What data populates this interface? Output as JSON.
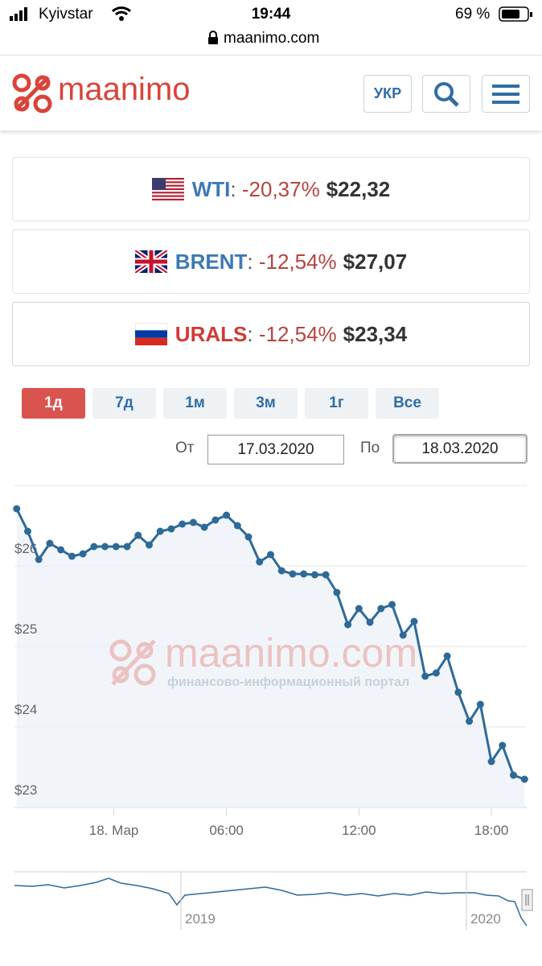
{
  "status": {
    "carrier": "Kyivstar",
    "time": "19:44",
    "battery": "69 %",
    "url": "maanimo.com"
  },
  "header": {
    "logo": "maanimo",
    "lang": "УКР"
  },
  "prices": [
    {
      "name": "WTI",
      "sep": ":",
      "change": "-20,37%",
      "price": "$22,32"
    },
    {
      "name": "BRENT",
      "sep": ":",
      "change": "-12,54%",
      "price": "$27,07"
    },
    {
      "name": "URALS",
      "sep": ":",
      "change": "-12,54%",
      "price": "$23,34"
    }
  ],
  "ranges": [
    "1д",
    "7д",
    "1м",
    "3м",
    "1г",
    "Все"
  ],
  "dates": {
    "from_label": "От",
    "from": "17.03.2020",
    "to_label": "По",
    "to": "18.03.2020"
  },
  "watermark": {
    "name": "maanimo.com",
    "tagline": "финансово-информационный портал"
  },
  "navigator": {
    "labels": [
      "2019",
      "2020"
    ]
  },
  "chart_data": {
    "type": "line",
    "color": "#2e6a97",
    "x": [
      -3.5,
      -3,
      -2.5,
      -2,
      -1.5,
      -1,
      -0.5,
      0,
      0.5,
      1,
      1.5,
      2,
      2.5,
      3,
      3.5,
      4,
      4.5,
      5,
      5.5,
      6,
      6.5,
      7,
      7.5,
      8,
      8.5,
      9,
      9.5,
      10,
      10.5,
      11,
      11.5,
      12,
      12.5,
      13,
      13.5,
      14,
      14.5,
      15,
      15.5,
      16,
      16.5,
      17,
      17.5,
      18,
      18.5,
      19,
      19.5
    ],
    "values": [
      26.71,
      26.43,
      26.08,
      26.28,
      26.2,
      26.12,
      26.15,
      26.24,
      26.24,
      26.24,
      26.24,
      26.38,
      26.26,
      26.43,
      26.46,
      26.52,
      26.54,
      26.48,
      26.57,
      26.63,
      26.5,
      26.36,
      26.05,
      26.14,
      25.94,
      25.9,
      25.9,
      25.89,
      25.89,
      25.67,
      25.27,
      25.47,
      25.3,
      25.47,
      25.52,
      25.14,
      25.31,
      24.63,
      24.67,
      24.88,
      24.43,
      24.07,
      24.28,
      23.57,
      23.77,
      23.4,
      23.35
    ],
    "xlim": [
      -3.6,
      19.6
    ],
    "xticks": [
      {
        "value": 0.9,
        "label": "18. Мар"
      },
      {
        "value": 6,
        "label": "06:00"
      },
      {
        "value": 12,
        "label": "12:00"
      },
      {
        "value": 18,
        "label": "18:00"
      }
    ],
    "ylim": [
      23,
      27
    ],
    "yticks": [
      {
        "value": 23,
        "label": "$23"
      },
      {
        "value": 24,
        "label": "$24"
      },
      {
        "value": 25,
        "label": "$25"
      },
      {
        "value": 26,
        "label": "$26"
      }
    ],
    "grid": true
  }
}
